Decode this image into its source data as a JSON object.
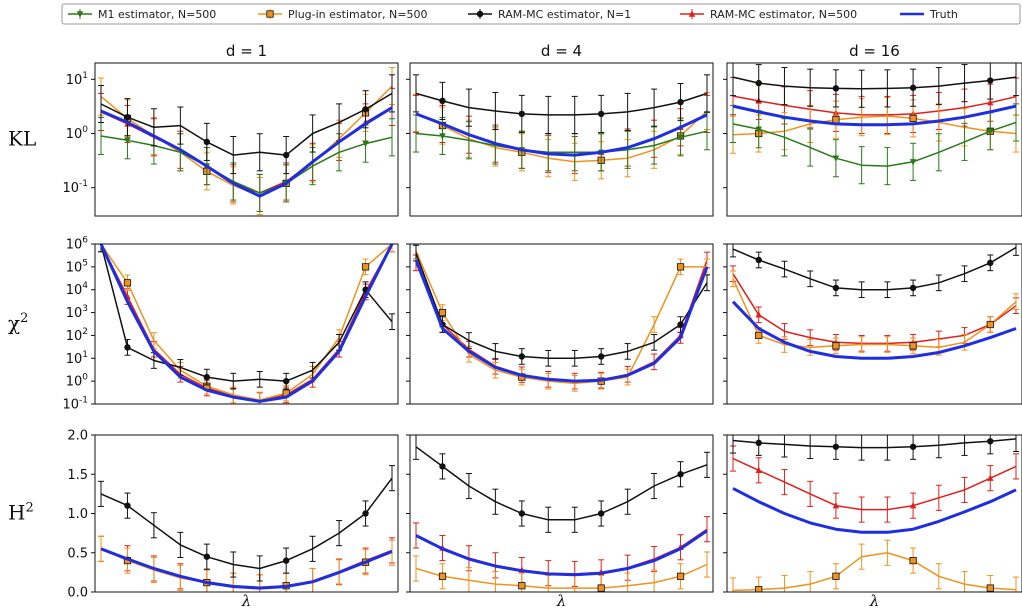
{
  "legend": {
    "entries": [
      {
        "label": "M1 estimator, N=500",
        "color": "#2a7a1a",
        "marker": "triangle-down"
      },
      {
        "label": "Plug-in estimator, N=500",
        "color": "#f0921e",
        "marker": "square"
      },
      {
        "label": "RAM-MC estimator, N=1",
        "color": "#111111",
        "marker": "circle"
      },
      {
        "label": "RAM-MC estimator, N=500",
        "color": "#e0201b",
        "marker": "triangle-up"
      },
      {
        "label": "Truth",
        "color": "#1f2ee0",
        "marker": "line"
      }
    ]
  },
  "columns": [
    "d = 1",
    "d = 4",
    "d = 16"
  ],
  "rows": [
    {
      "label": "KL",
      "sup": ""
    },
    {
      "label": "χ",
      "sup": "2"
    },
    {
      "label": "H",
      "sup": "2"
    }
  ],
  "xlabel": "λ",
  "chart_data": [
    {
      "type": "line",
      "metric": "KL",
      "yscale": "log",
      "ylim": [
        0.03,
        20
      ],
      "yticks": [
        {
          "v": 10,
          "base": "10",
          "exp": "1"
        },
        {
          "v": 1,
          "base": "10",
          "exp": "0"
        },
        {
          "v": 0.1,
          "base": "10",
          "exp": "-1"
        }
      ],
      "panels": [
        {
          "title": "d = 1",
          "series": [
            {
              "name": "Truth",
              "values": [
                2.6,
                1.6,
                0.9,
                0.5,
                0.25,
                0.12,
                0.07,
                0.12,
                0.3,
                0.7,
                1.5,
                3.0
              ]
            },
            {
              "name": "RAM-MC estimator, N=500",
              "values": [
                2.5,
                1.5,
                0.85,
                0.5,
                0.25,
                0.12,
                0.08,
                0.13,
                0.3,
                0.7,
                1.6,
                3.1
              ]
            },
            {
              "name": "Plug-in estimator, N=500",
              "values": [
                4.8,
                1.9,
                0.9,
                0.45,
                0.2,
                0.11,
                0.07,
                0.12,
                0.28,
                0.8,
                2.4,
                7.5
              ]
            },
            {
              "name": "M1 estimator, N=500",
              "values": [
                0.9,
                0.75,
                0.6,
                0.45,
                0.25,
                0.13,
                0.08,
                0.12,
                0.25,
                0.45,
                0.65,
                0.85
              ]
            },
            {
              "name": "RAM-MC estimator, N=1",
              "values": [
                3.5,
                2.0,
                1.3,
                1.4,
                0.7,
                0.4,
                0.45,
                0.4,
                1.0,
                1.6,
                2.8,
                5.5
              ]
            }
          ]
        },
        {
          "title": "d = 4",
          "series": [
            {
              "name": "Truth",
              "values": [
                2.3,
                1.5,
                0.95,
                0.65,
                0.5,
                0.42,
                0.4,
                0.45,
                0.55,
                0.8,
                1.3,
                2.2
              ]
            },
            {
              "name": "RAM-MC estimator, N=500",
              "values": [
                2.3,
                1.5,
                0.95,
                0.65,
                0.5,
                0.42,
                0.4,
                0.45,
                0.55,
                0.8,
                1.3,
                2.3
              ]
            },
            {
              "name": "Plug-in estimator, N=500",
              "values": [
                2.4,
                1.4,
                0.8,
                0.55,
                0.45,
                0.35,
                0.3,
                0.32,
                0.35,
                0.5,
                0.9,
                2.6
              ]
            },
            {
              "name": "M1 estimator, N=500",
              "values": [
                1.0,
                0.9,
                0.75,
                0.6,
                0.5,
                0.45,
                0.45,
                0.45,
                0.5,
                0.6,
                0.85,
                1.1
              ]
            },
            {
              "name": "RAM-MC estimator, N=1",
              "values": [
                5.5,
                4.0,
                3.0,
                2.6,
                2.3,
                2.2,
                2.2,
                2.3,
                2.5,
                3.0,
                3.8,
                5.5
              ]
            }
          ]
        },
        {
          "title": "d = 16",
          "series": [
            {
              "name": "Truth",
              "values": [
                3.2,
                2.5,
                2.0,
                1.7,
                1.5,
                1.45,
                1.45,
                1.5,
                1.7,
                2.0,
                2.5,
                3.2
              ]
            },
            {
              "name": "RAM-MC estimator, N=500",
              "values": [
                4.9,
                4.0,
                3.3,
                2.8,
                2.4,
                2.2,
                2.2,
                2.3,
                2.6,
                3.0,
                3.7,
                4.8
              ]
            },
            {
              "name": "Plug-in estimator, N=500",
              "values": [
                0.95,
                1.0,
                1.1,
                1.5,
                1.8,
                2.0,
                2.1,
                1.9,
                1.6,
                1.3,
                1.1,
                1.0
              ]
            },
            {
              "name": "M1 estimator, N=500",
              "values": [
                1.5,
                1.2,
                0.85,
                0.55,
                0.35,
                0.26,
                0.25,
                0.3,
                0.45,
                0.7,
                1.1,
                1.6
              ]
            },
            {
              "name": "RAM-MC estimator, N=1",
              "values": [
                11,
                8.5,
                7.5,
                7.0,
                6.8,
                6.7,
                6.8,
                7.0,
                7.5,
                8.5,
                9.5,
                11
              ]
            }
          ]
        }
      ]
    },
    {
      "type": "line",
      "metric": "chi-squared",
      "yscale": "log",
      "ylim": [
        0.1,
        1000000
      ],
      "yticks": [
        {
          "v": 1000000,
          "base": "10",
          "exp": "6"
        },
        {
          "v": 100000,
          "base": "10",
          "exp": "5"
        },
        {
          "v": 10000,
          "base": "10",
          "exp": "4"
        },
        {
          "v": 1000,
          "base": "10",
          "exp": "3"
        },
        {
          "v": 100,
          "base": "10",
          "exp": "2"
        },
        {
          "v": 10,
          "base": "10",
          "exp": "1"
        },
        {
          "v": 1,
          "base": "10",
          "exp": "0"
        },
        {
          "v": 0.1,
          "base": "10",
          "exp": "-1"
        }
      ],
      "panels": [
        {
          "title": "d = 1",
          "series": [
            {
              "name": "Truth",
              "values": [
                1000000,
                3000,
                20,
                1.5,
                0.4,
                0.2,
                0.13,
                0.2,
                1.0,
                20,
                5000,
                1000000
              ]
            },
            {
              "name": "RAM-MC estimator, N=500",
              "values": [
                1000000,
                5000,
                25,
                2.0,
                0.5,
                0.22,
                0.14,
                0.25,
                1.2,
                25,
                8000,
                1000000
              ]
            },
            {
              "name": "Plug-in estimator, N=500",
              "values": [
                1000000,
                20000,
                60,
                3.0,
                0.6,
                0.25,
                0.15,
                0.3,
                2.0,
                80,
                100000,
                1000000
              ]
            },
            {
              "name": "RAM-MC estimator, N=1",
              "values": [
                1000000,
                30,
                8,
                4,
                1.5,
                1.0,
                1.2,
                1.0,
                3,
                50,
                10000,
                400
              ]
            }
          ]
        },
        {
          "title": "d = 4",
          "series": [
            {
              "name": "Truth",
              "values": [
                200000,
                200,
                20,
                4,
                1.8,
                1.2,
                1.0,
                1.1,
                1.8,
                6,
                80,
                100000
              ]
            },
            {
              "name": "RAM-MC estimator, N=500",
              "values": [
                150000,
                300,
                25,
                4.5,
                1.9,
                1.2,
                1.0,
                1.1,
                2.0,
                7,
                100,
                200000
              ]
            },
            {
              "name": "Plug-in estimator, N=500",
              "values": [
                500000,
                1000,
                15,
                3,
                1.5,
                1.0,
                0.8,
                1.0,
                1.5,
                300,
                100000,
                100000
              ]
            },
            {
              "name": "RAM-MC estimator, N=1",
              "values": [
                400000,
                300,
                60,
                20,
                12,
                10,
                10,
                12,
                20,
                50,
                300,
                20000
              ]
            }
          ]
        },
        {
          "title": "d = 16",
          "series": [
            {
              "name": "Truth",
              "values": [
                3000,
                200,
                50,
                20,
                12,
                10,
                10,
                12,
                18,
                35,
                80,
                200
              ]
            },
            {
              "name": "RAM-MC estimator, N=500",
              "values": [
                50000,
                800,
                150,
                80,
                50,
                45,
                45,
                50,
                70,
                100,
                300,
                2000
              ]
            },
            {
              "name": "Plug-in estimator, N=500",
              "values": [
                30000,
                100,
                40,
                30,
                35,
                40,
                40,
                35,
                30,
                50,
                300,
                3000
              ]
            },
            {
              "name": "RAM-MC estimator, N=1",
              "values": [
                600000,
                200000,
                80000,
                30000,
                12000,
                10000,
                10000,
                12000,
                20000,
                50000,
                150000,
                700000
              ]
            }
          ]
        }
      ]
    },
    {
      "type": "line",
      "metric": "H-squared",
      "yscale": "linear",
      "ylim": [
        0,
        2.0
      ],
      "yticks": [
        {
          "v": 0.0,
          "label": "0.0"
        },
        {
          "v": 0.5,
          "label": "0.5"
        },
        {
          "v": 1.0,
          "label": "1.0"
        },
        {
          "v": 1.5,
          "label": "1.5"
        },
        {
          "v": 2.0,
          "label": "2.0"
        }
      ],
      "panels": [
        {
          "title": "d = 1",
          "series": [
            {
              "name": "Truth",
              "values": [
                0.55,
                0.42,
                0.3,
                0.2,
                0.12,
                0.07,
                0.05,
                0.07,
                0.13,
                0.25,
                0.38,
                0.52
              ]
            },
            {
              "name": "RAM-MC estimator, N=500",
              "values": [
                0.55,
                0.43,
                0.3,
                0.2,
                0.13,
                0.08,
                0.06,
                0.08,
                0.14,
                0.26,
                0.4,
                0.53
              ]
            },
            {
              "name": "Plug-in estimator, N=500",
              "values": [
                0.55,
                0.4,
                0.28,
                0.18,
                0.12,
                0.08,
                0.06,
                0.08,
                0.14,
                0.25,
                0.38,
                0.5
              ]
            },
            {
              "name": "RAM-MC estimator, N=1",
              "values": [
                1.25,
                1.1,
                0.85,
                0.6,
                0.45,
                0.35,
                0.3,
                0.4,
                0.55,
                0.75,
                1.0,
                1.45
              ]
            }
          ]
        },
        {
          "title": "d = 4",
          "series": [
            {
              "name": "Truth",
              "values": [
                0.72,
                0.55,
                0.42,
                0.33,
                0.27,
                0.23,
                0.22,
                0.24,
                0.3,
                0.4,
                0.55,
                0.78
              ]
            },
            {
              "name": "RAM-MC estimator, N=500",
              "values": [
                0.72,
                0.56,
                0.43,
                0.34,
                0.28,
                0.24,
                0.23,
                0.25,
                0.31,
                0.42,
                0.57,
                0.8
              ]
            },
            {
              "name": "Plug-in estimator, N=500",
              "values": [
                0.3,
                0.2,
                0.15,
                0.1,
                0.08,
                0.05,
                0.05,
                0.05,
                0.08,
                0.12,
                0.2,
                0.35
              ]
            },
            {
              "name": "RAM-MC estimator, N=1",
              "values": [
                1.85,
                1.6,
                1.35,
                1.15,
                1.0,
                0.92,
                0.92,
                1.0,
                1.15,
                1.35,
                1.5,
                1.62
              ]
            }
          ]
        },
        {
          "title": "d = 16",
          "series": [
            {
              "name": "Truth",
              "values": [
                1.32,
                1.15,
                1.0,
                0.88,
                0.8,
                0.76,
                0.76,
                0.8,
                0.9,
                1.02,
                1.15,
                1.3
              ]
            },
            {
              "name": "RAM-MC estimator, N=500",
              "values": [
                1.7,
                1.55,
                1.4,
                1.25,
                1.1,
                1.05,
                1.05,
                1.1,
                1.2,
                1.3,
                1.45,
                1.6
              ]
            },
            {
              "name": "Plug-in estimator, N=500",
              "values": [
                0.02,
                0.03,
                0.05,
                0.1,
                0.2,
                0.45,
                0.5,
                0.4,
                0.2,
                0.1,
                0.05,
                0.03
              ]
            },
            {
              "name": "RAM-MC estimator, N=1",
              "values": [
                1.93,
                1.9,
                1.88,
                1.86,
                1.85,
                1.84,
                1.84,
                1.85,
                1.87,
                1.9,
                1.92,
                1.95
              ]
            }
          ]
        }
      ]
    }
  ]
}
